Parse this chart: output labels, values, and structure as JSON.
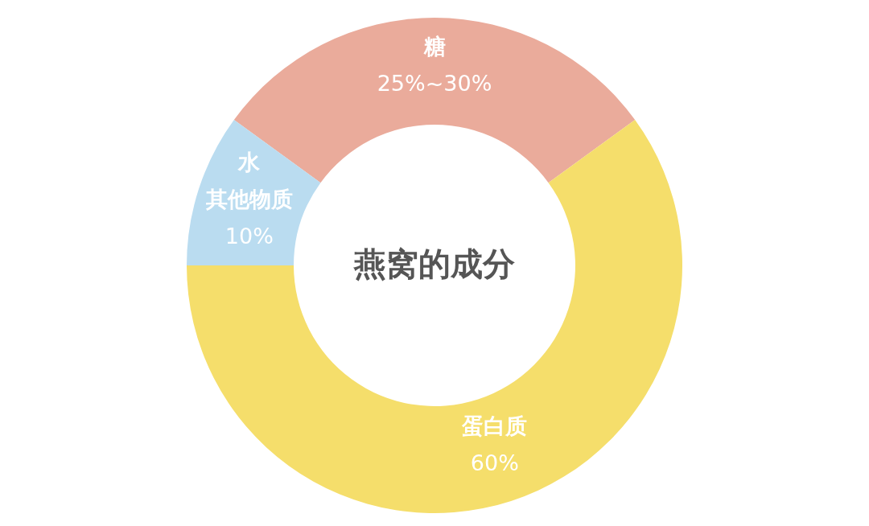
{
  "chart_data": {
    "type": "donut",
    "title": "燕窝的成分",
    "categories": [
      "糖",
      "蛋白质",
      "水其他物质"
    ],
    "values": [
      30,
      60,
      10
    ],
    "colors": [
      "#eaab9b",
      "#f5de6b",
      "#badcf0"
    ],
    "value_labels": [
      "25%~30%",
      "60%",
      "10%"
    ]
  }
}
